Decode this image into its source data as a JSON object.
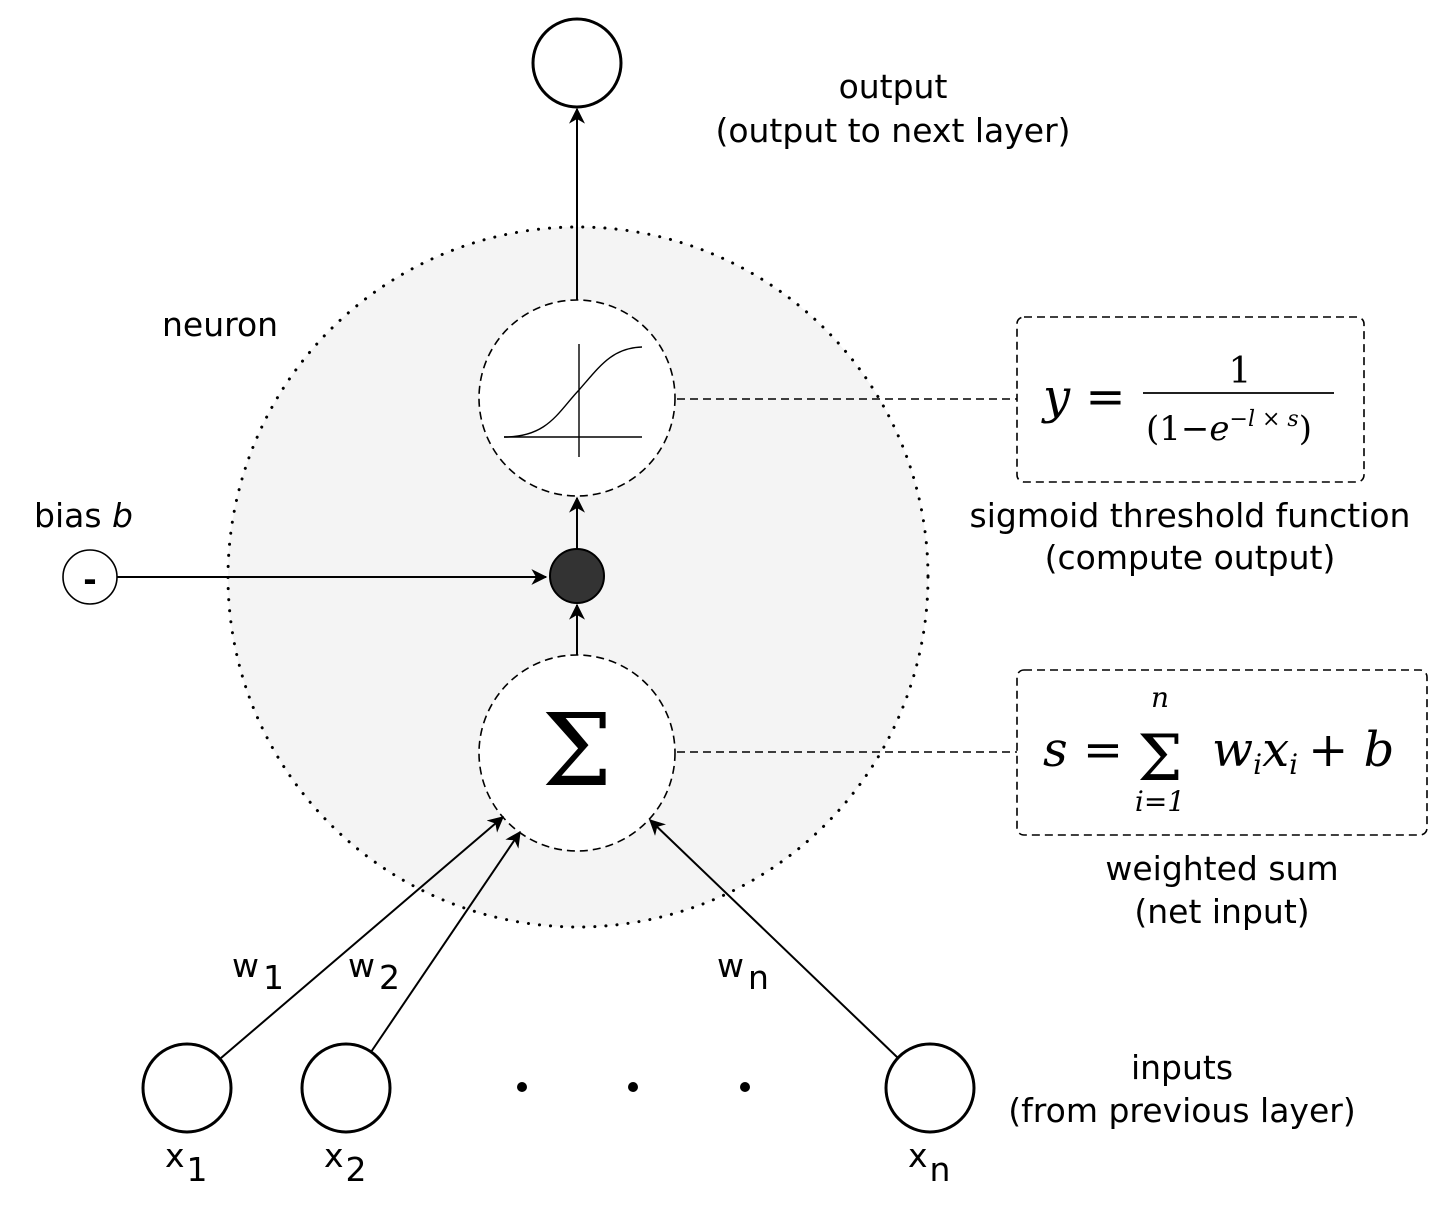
{
  "output": {
    "title": "output",
    "subtitle": "(output to next layer)"
  },
  "neuron": {
    "label": "neuron"
  },
  "bias": {
    "label": "bias ",
    "symbol": "b",
    "node_sign": "-"
  },
  "activation": {
    "formula_lhs": "y =",
    "formula_num": "1",
    "formula_den_open": "(1",
    "formula_den_minus": "−",
    "formula_den_e": "e",
    "formula_den_exp": "−l × s",
    "formula_den_close": ")",
    "caption_line1": "sigmoid threshold function",
    "caption_line2": "(compute output)"
  },
  "summation": {
    "symbol": "Σ",
    "formula_lhs": "s =",
    "formula_sigma": "Σ",
    "formula_upper": "n",
    "formula_lower": "i=1",
    "formula_w": "w",
    "formula_wi": "i",
    "formula_x": "x",
    "formula_xi": "i",
    "formula_rest": "+ b",
    "caption_line1": "weighted sum",
    "caption_line2": "(net input)"
  },
  "inputs": {
    "caption_line1": "inputs",
    "caption_line2": "(from previous layer)",
    "nodes": [
      {
        "name": "x",
        "sub": "1",
        "weight": "w",
        "weight_sub": "1"
      },
      {
        "name": "x",
        "sub": "2",
        "weight": "w",
        "weight_sub": "2"
      },
      {
        "name": "x",
        "sub": "n",
        "weight": "w",
        "weight_sub": "n"
      }
    ]
  },
  "colors": {
    "neuron_fill": "#f4f4f4",
    "junction_fill": "#333333",
    "stroke": "#000000"
  }
}
